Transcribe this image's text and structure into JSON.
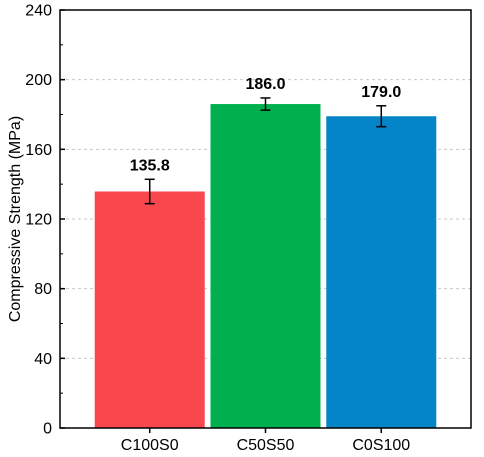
{
  "chart_data": {
    "type": "bar",
    "title": "",
    "xlabel": "",
    "ylabel": "Compressive Strength (MPa)",
    "ylim": [
      0,
      240
    ],
    "yticks": [
      0,
      40,
      80,
      120,
      160,
      200,
      240
    ],
    "grid": "horizontal-dashed",
    "legend": "none",
    "categories": [
      "C100S0",
      "C50S50",
      "C0S100"
    ],
    "values": [
      135.8,
      186.0,
      179.0
    ],
    "error": [
      7.0,
      3.5,
      6.0
    ],
    "data_labels": [
      "135.8",
      "186.0",
      "179.0"
    ],
    "colors": [
      "#f9474e",
      "#00b04f",
      "#0385c8"
    ]
  }
}
